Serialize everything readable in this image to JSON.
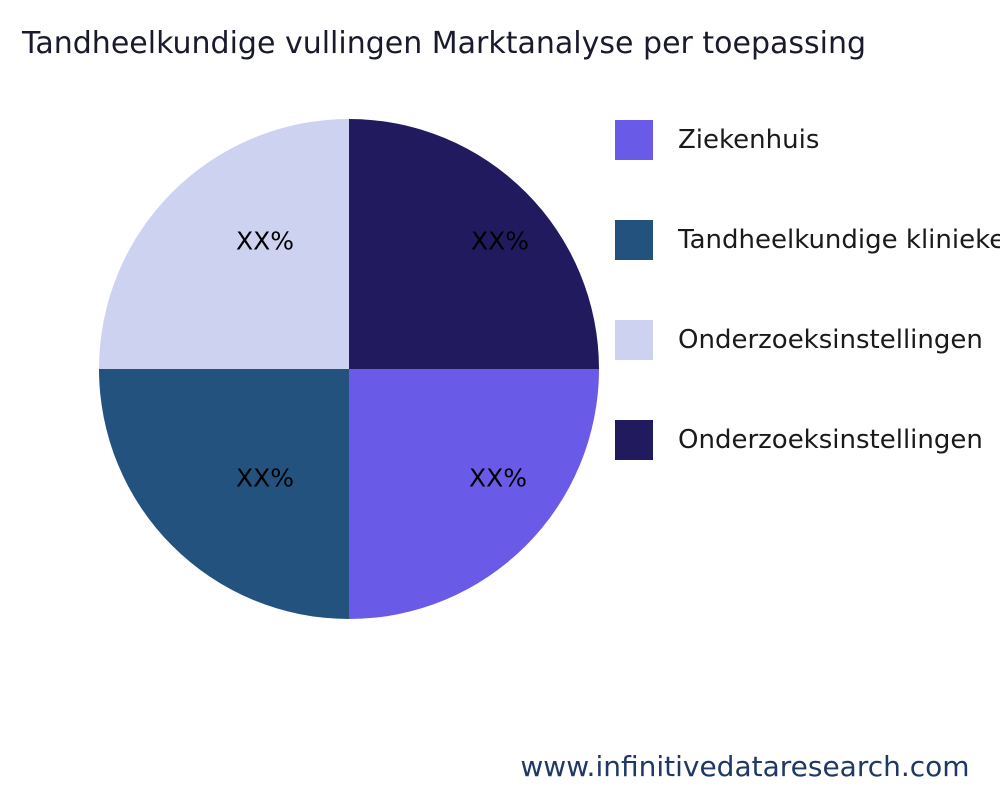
{
  "title": "Tandheelkundige vullingen Marktanalyse per toepassing",
  "footer": {
    "website": "www.infinitivedataresearch.com"
  },
  "chart_data": {
    "type": "pie",
    "title": "Tandheelkundige vullingen Marktanalyse per toepassing",
    "legend_position": "right",
    "slices": [
      {
        "label": "Ziekenhuis",
        "display": "XX%",
        "value": 25,
        "color": "#6a5ae8"
      },
      {
        "label": "Tandheelkundige klinieken",
        "display": "XX%",
        "value": 25,
        "color": "#24527e"
      },
      {
        "label": "Onderzoeksinstellingen",
        "display": "XX%",
        "value": 25,
        "color": "#ccd2f0"
      },
      {
        "label": "Onderzoeksinstellingen",
        "display": "XX%",
        "value": 25,
        "color": "#211a5f"
      }
    ],
    "pie_order_clockwise_from_top": [
      3,
      0,
      1,
      2
    ]
  }
}
